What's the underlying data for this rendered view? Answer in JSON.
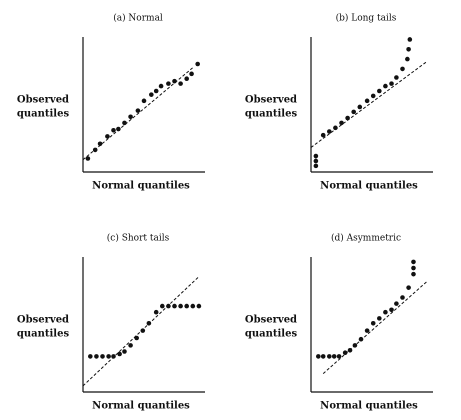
{
  "chart_data": [
    {
      "type": "scatter",
      "title": "(a) Normal",
      "ylabel": [
        "Observed",
        "quantiles"
      ],
      "xlabel": "Normal quantiles",
      "xlim": [
        0,
        10
      ],
      "ylim": [
        0,
        11
      ],
      "color": "#111",
      "x": [
        0.4,
        1,
        1.4,
        2,
        2.5,
        2.9,
        3.4,
        3.9,
        4.5,
        5,
        5.6,
        6,
        6.4,
        7,
        7.5,
        8,
        8.5,
        8.9,
        9.4
      ],
      "values": [
        1.1,
        1.8,
        2.3,
        2.9,
        3.4,
        3.5,
        4,
        4.5,
        5,
        5.8,
        6.3,
        6.6,
        7,
        7.2,
        7.4,
        7.2,
        7.6,
        8,
        8.8
      ],
      "reference_line": {
        "x": [
          0,
          9
        ],
        "y": [
          1,
          8.5
        ]
      }
    },
    {
      "type": "scatter",
      "title": "(b) Long tails",
      "ylabel": [
        "Observed",
        "quantiles"
      ],
      "xlabel": "Normal quantiles",
      "xlim": [
        0,
        10
      ],
      "ylim": [
        0,
        11
      ],
      "color": "#111",
      "x": [
        0.4,
        0.4,
        0.4,
        1,
        1.5,
        2,
        2.5,
        3,
        3.5,
        4,
        4.6,
        5.1,
        5.6,
        6.1,
        6.6,
        7,
        7.5,
        7.9,
        8,
        8.1
      ],
      "values": [
        0.5,
        0.9,
        1.3,
        3,
        3.3,
        3.6,
        4,
        4.4,
        4.9,
        5.3,
        5.8,
        6.2,
        6.6,
        7,
        7.2,
        7.7,
        8.4,
        9.2,
        10,
        10.8
      ],
      "reference_line": {
        "x": [
          0,
          9.5
        ],
        "y": [
          2,
          9
        ]
      }
    },
    {
      "type": "scatter",
      "title": "(c) Short tails",
      "ylabel": [
        "Observed",
        "quantiles"
      ],
      "xlabel": "Normal quantiles",
      "xlim": [
        0,
        10
      ],
      "ylim": [
        0,
        11
      ],
      "color": "#111",
      "x": [
        0.6,
        1.1,
        1.6,
        2.1,
        2.5,
        3,
        3.4,
        3.9,
        4.4,
        4.9,
        5.4,
        6,
        6.5,
        7,
        7.5,
        8,
        8.5,
        9,
        9.5
      ],
      "values": [
        2.9,
        2.9,
        2.9,
        2.9,
        2.9,
        3.1,
        3.3,
        3.8,
        4.4,
        5,
        5.6,
        6.5,
        7,
        7,
        7,
        7,
        7,
        7,
        7
      ],
      "reference_line": {
        "x": [
          0,
          9.5
        ],
        "y": [
          0.5,
          9.4
        ]
      }
    },
    {
      "type": "scatter",
      "title": "(d) Asymmetric",
      "ylabel": [
        "Observed",
        "quantiles"
      ],
      "xlabel": "Normal quantiles",
      "xlim": [
        0,
        10
      ],
      "ylim": [
        0,
        11
      ],
      "color": "#111",
      "x": [
        0.6,
        1,
        1.5,
        1.9,
        2.3,
        2.8,
        3.2,
        3.6,
        4.1,
        4.6,
        5.1,
        5.6,
        6.1,
        6.6,
        7,
        7.5,
        8,
        8.4,
        8.4,
        8.4
      ],
      "values": [
        2.9,
        2.9,
        2.9,
        2.9,
        2.9,
        3.2,
        3.4,
        3.8,
        4.3,
        5,
        5.6,
        6,
        6.5,
        6.7,
        7.2,
        7.7,
        8.5,
        9.6,
        10.1,
        10.6
      ],
      "reference_line": {
        "x": [
          1,
          9.5
        ],
        "y": [
          1.5,
          9
        ]
      }
    }
  ]
}
